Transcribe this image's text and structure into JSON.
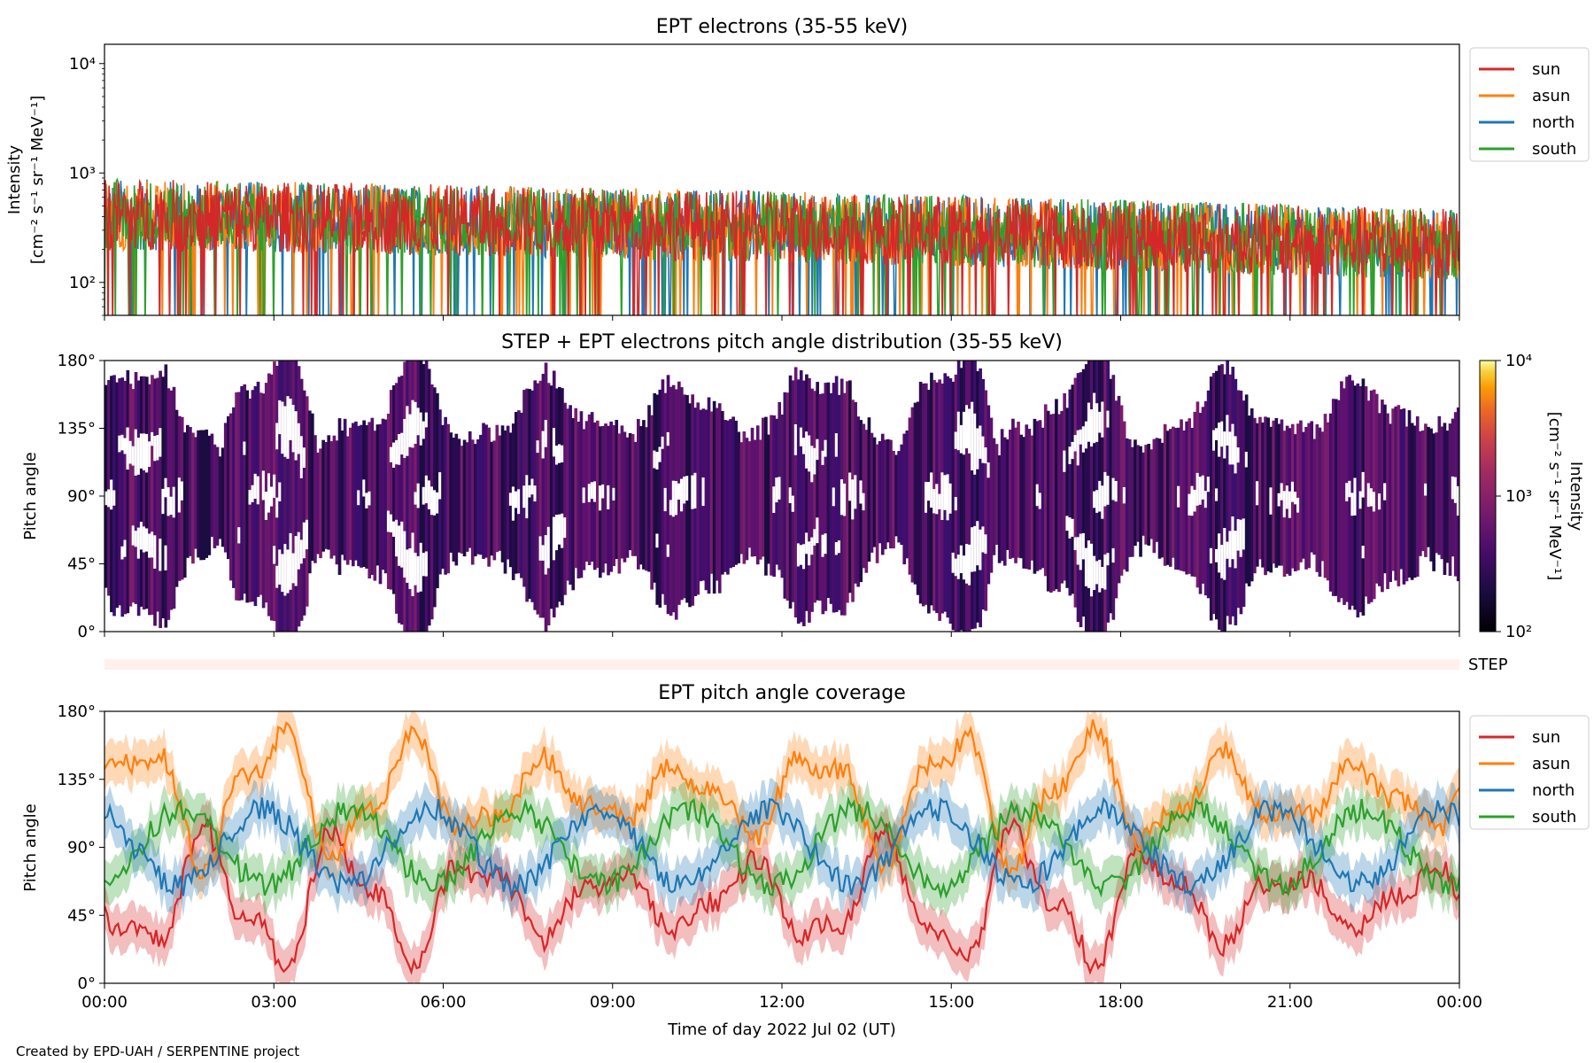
{
  "footer": "Created by EPD-UAH / SERPENTINE project",
  "chart_data": [
    {
      "type": "line",
      "title": "EPT electrons (35-55 keV)",
      "ylabel": [
        "Intensity",
        "[cm⁻² s⁻¹ sr⁻¹ MeV⁻¹]"
      ],
      "yscale": "log",
      "ylim": [
        50,
        15000
      ],
      "yticks": [
        {
          "value": 100,
          "label": "10²"
        },
        {
          "value": 1000,
          "label": "10³"
        },
        {
          "value": 10000,
          "label": "10⁴"
        }
      ],
      "xlim_hours": [
        0,
        24
      ],
      "legend_position": "outside-right",
      "series": [
        {
          "name": "sun",
          "color": "#d62728",
          "typical_range": [
            100,
            700
          ]
        },
        {
          "name": "asun",
          "color": "#ff7f0e",
          "typical_range": [
            100,
            800
          ]
        },
        {
          "name": "north",
          "color": "#1f77b4",
          "typical_range": [
            100,
            800
          ]
        },
        {
          "name": "south",
          "color": "#2ca02c",
          "typical_range": [
            100,
            800
          ]
        }
      ]
    },
    {
      "type": "heatmap",
      "title": "STEP + EPT electrons pitch angle distribution (35-55 keV)",
      "ylabel": "Pitch angle",
      "ylim": [
        0,
        180
      ],
      "yticks": [
        "0°",
        "45°",
        "90°",
        "135°",
        "180°"
      ],
      "xlim_hours": [
        0,
        24
      ],
      "colorbar": {
        "label": [
          "Intensity",
          "[cm⁻² s⁻¹ sr⁻¹ MeV⁻¹]"
        ],
        "scale": "log",
        "range": [
          100,
          10000
        ],
        "ticks": [
          "10²",
          "10³",
          "10⁴"
        ],
        "colormap": "inferno"
      }
    },
    {
      "type": "strip",
      "label": "STEP",
      "color": "#fff0ec"
    },
    {
      "type": "line",
      "title": "EPT pitch angle coverage",
      "ylabel": "Pitch angle",
      "ylim": [
        0,
        180
      ],
      "yticks": [
        "0°",
        "45°",
        "90°",
        "135°",
        "180°"
      ],
      "xlabel": "Time of day 2022 Jul 02 (UT)",
      "xticks": [
        "00:00",
        "03:00",
        "06:00",
        "09:00",
        "12:00",
        "15:00",
        "18:00",
        "21:00",
        "00:00"
      ],
      "legend_position": "outside-right",
      "series": [
        {
          "name": "sun",
          "color": "#d62728"
        },
        {
          "name": "asun",
          "color": "#ff7f0e"
        },
        {
          "name": "north",
          "color": "#1f77b4"
        },
        {
          "name": "south",
          "color": "#2ca02c"
        }
      ]
    }
  ]
}
